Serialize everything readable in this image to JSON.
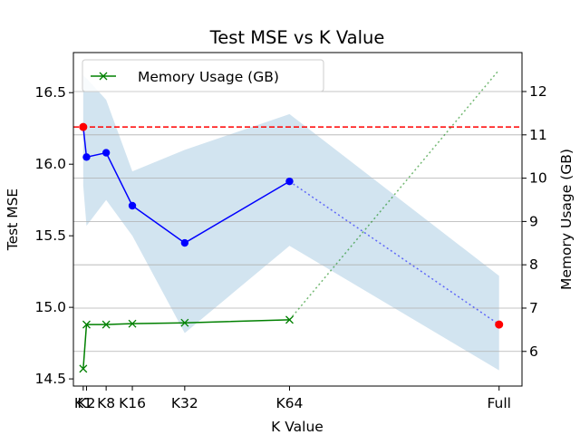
{
  "chart_data": {
    "type": "line",
    "title": "Test MSE vs K Value",
    "xlabel": "K Value",
    "ylabel": "Test MSE",
    "ylabel_right": "Memory Usage (GB)",
    "categories": [
      "K1",
      "K2",
      "K8",
      "K16",
      "K32",
      "K64",
      "Full"
    ],
    "x": [
      1,
      2,
      8,
      16,
      32,
      64,
      128
    ],
    "xlim": [
      -2,
      135
    ],
    "ylim": [
      14.45,
      16.78
    ],
    "ylim_right": [
      5.2,
      12.9
    ],
    "yticks": [
      14.5,
      15.0,
      15.5,
      16.0,
      16.5
    ],
    "yticks_right": [
      6,
      7,
      8,
      9,
      10,
      11,
      12
    ],
    "grid": "y-right",
    "legend_position": "top-left",
    "series": [
      {
        "axis": "left",
        "color": "#0000ff",
        "marker": "circle",
        "values": [
          16.26,
          16.05,
          16.08,
          15.71,
          15.45,
          15.88,
          14.88
        ],
        "dashed_from_index": 5,
        "band_upper": [
          16.62,
          16.6,
          16.45,
          15.95,
          16.1,
          16.35,
          15.22
        ],
        "band_lower": [
          15.85,
          15.57,
          15.75,
          15.5,
          14.82,
          15.43,
          14.56
        ]
      },
      {
        "name": "Memory Usage (GB)",
        "axis": "right",
        "color": "#008000",
        "marker": "x",
        "values": [
          5.6,
          6.62,
          6.62,
          6.64,
          6.66,
          6.73,
          12.5
        ],
        "dashed_from_index": 5
      }
    ],
    "reference_line": {
      "y": 16.26,
      "color": "#ff0000",
      "style": "dashed"
    },
    "highlight_points": [
      {
        "x": 1,
        "y": 16.26,
        "color": "#ff0000"
      },
      {
        "x": 128,
        "y": 14.88,
        "color": "#ff0000"
      }
    ],
    "band_color": "#1f77b4"
  }
}
